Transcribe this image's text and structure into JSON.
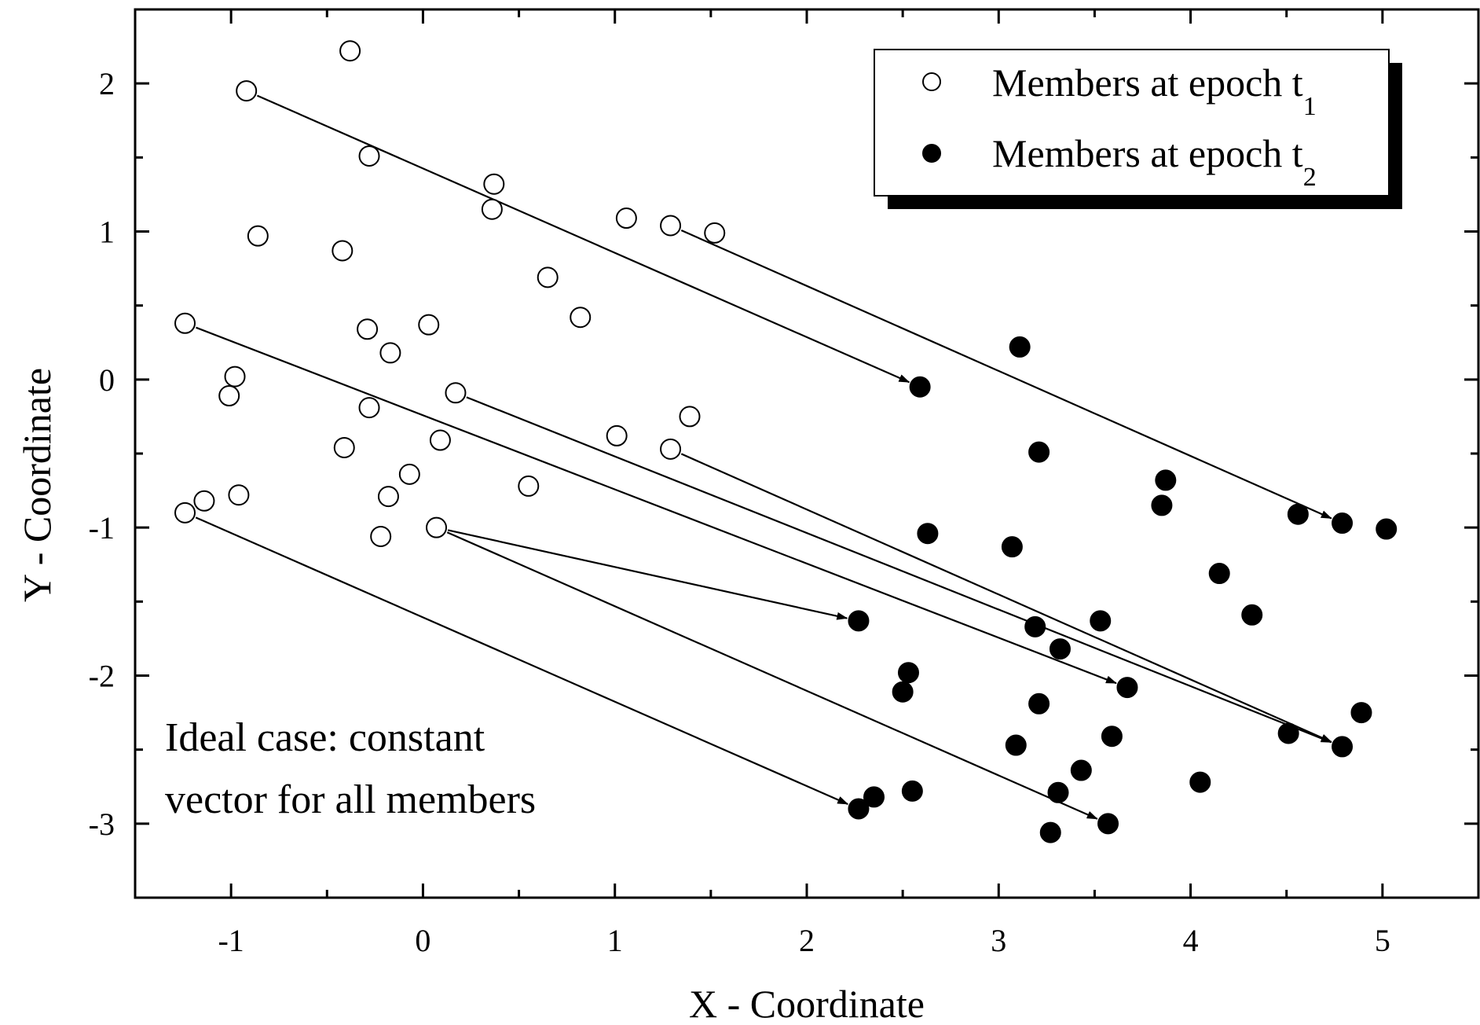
{
  "chart_data": {
    "type": "scatter",
    "title": "",
    "xlabel": "X - Coordinate",
    "ylabel": "Y - Coordinate",
    "xlim": [
      -1.5,
      5.5
    ],
    "ylim": [
      -3.5,
      2.5
    ],
    "xticks": [
      -1,
      0,
      1,
      2,
      3,
      4,
      5
    ],
    "yticks": [
      2,
      1,
      0,
      -1,
      -2,
      -3
    ],
    "legend_position": "top-right",
    "annotation": [
      "Ideal case: constant",
      "vector for all members"
    ],
    "series": [
      {
        "name": "Members at epoch t",
        "subscript": "1",
        "marker": "open-circle",
        "points": [
          [
            -0.38,
            2.22
          ],
          [
            -0.92,
            1.95
          ],
          [
            -0.28,
            1.51
          ],
          [
            0.37,
            1.32
          ],
          [
            0.36,
            1.15
          ],
          [
            1.06,
            1.09
          ],
          [
            1.29,
            1.04
          ],
          [
            1.52,
            0.99
          ],
          [
            -0.86,
            0.97
          ],
          [
            -0.42,
            0.87
          ],
          [
            0.65,
            0.69
          ],
          [
            0.82,
            0.42
          ],
          [
            -1.24,
            0.38
          ],
          [
            0.03,
            0.37
          ],
          [
            -0.29,
            0.34
          ],
          [
            -0.17,
            0.18
          ],
          [
            -0.98,
            0.02
          ],
          [
            -1.01,
            -0.11
          ],
          [
            0.17,
            -0.09
          ],
          [
            -0.28,
            -0.19
          ],
          [
            1.39,
            -0.25
          ],
          [
            1.01,
            -0.38
          ],
          [
            0.09,
            -0.41
          ],
          [
            -0.41,
            -0.46
          ],
          [
            1.29,
            -0.47
          ],
          [
            -0.07,
            -0.64
          ],
          [
            0.55,
            -0.72
          ],
          [
            -0.96,
            -0.78
          ],
          [
            -0.18,
            -0.79
          ],
          [
            -1.14,
            -0.82
          ],
          [
            -1.24,
            -0.9
          ],
          [
            0.07,
            -1.0
          ],
          [
            -0.22,
            -1.06
          ]
        ]
      },
      {
        "name": "Members at epoch t",
        "subscript": "2",
        "marker": "filled-circle",
        "points": [
          [
            3.11,
            0.22
          ],
          [
            2.59,
            -0.05
          ],
          [
            3.21,
            -0.49
          ],
          [
            3.87,
            -0.68
          ],
          [
            3.85,
            -0.85
          ],
          [
            4.56,
            -0.91
          ],
          [
            4.79,
            -0.97
          ],
          [
            5.02,
            -1.01
          ],
          [
            2.63,
            -1.04
          ],
          [
            3.07,
            -1.13
          ],
          [
            4.15,
            -1.31
          ],
          [
            4.32,
            -1.59
          ],
          [
            2.27,
            -1.63
          ],
          [
            3.53,
            -1.63
          ],
          [
            3.19,
            -1.67
          ],
          [
            3.32,
            -1.82
          ],
          [
            2.53,
            -1.98
          ],
          [
            3.67,
            -2.08
          ],
          [
            2.5,
            -2.11
          ],
          [
            3.21,
            -2.19
          ],
          [
            4.89,
            -2.25
          ],
          [
            4.51,
            -2.39
          ],
          [
            3.59,
            -2.41
          ],
          [
            3.09,
            -2.47
          ],
          [
            4.79,
            -2.48
          ],
          [
            3.43,
            -2.64
          ],
          [
            4.05,
            -2.72
          ],
          [
            2.55,
            -2.78
          ],
          [
            3.31,
            -2.79
          ],
          [
            2.35,
            -2.82
          ],
          [
            2.27,
            -2.9
          ],
          [
            3.57,
            -3.0
          ],
          [
            3.27,
            -3.06
          ]
        ]
      }
    ],
    "vectors": [
      [
        -0.92,
        1.95,
        2.59,
        -0.05
      ],
      [
        1.29,
        1.04,
        4.79,
        -0.97
      ],
      [
        -1.24,
        0.38,
        3.67,
        -2.08
      ],
      [
        0.17,
        -0.09,
        4.79,
        -2.48
      ],
      [
        1.29,
        -0.47,
        4.79,
        -2.48
      ],
      [
        0.07,
        -1.0,
        2.27,
        -1.63
      ],
      [
        -1.24,
        -0.9,
        2.27,
        -2.9
      ],
      [
        0.07,
        -1.0,
        3.57,
        -3.0
      ]
    ]
  }
}
